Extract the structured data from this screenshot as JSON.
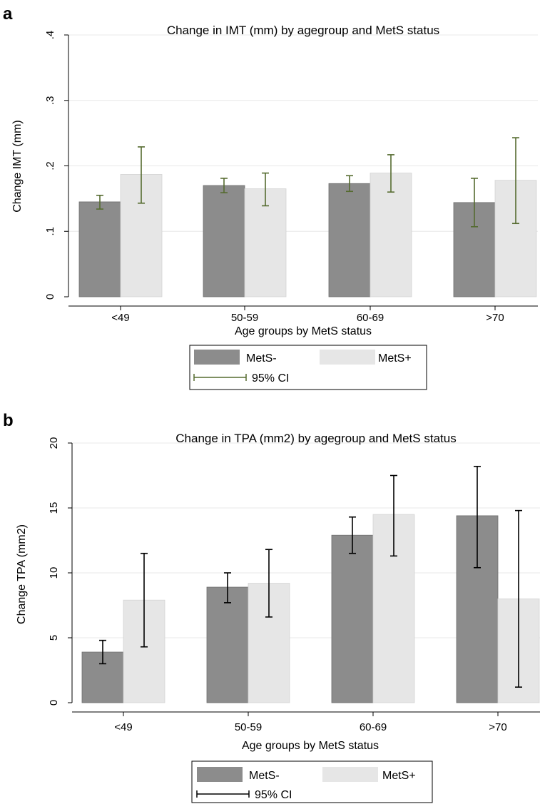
{
  "chart_data": [
    {
      "panel_label": "a",
      "type": "bar",
      "title": "Change in IMT (mm) by agegroup and MetS status",
      "xlabel": "Age groups by MetS status",
      "ylabel": "Change IMT (mm)",
      "categories": [
        "<49",
        "50-59",
        "60-69",
        ">70"
      ],
      "ylim": [
        0,
        0.4
      ],
      "yticks": [
        0,
        0.1,
        0.2,
        0.3,
        0.4
      ],
      "ytick_labels": [
        "0",
        ".1",
        ".2",
        ".3",
        ".4"
      ],
      "ytick_rotation": "vertical",
      "grid": true,
      "ci_color": "#556b2f",
      "series": [
        {
          "name": "MetS-",
          "color": "#8c8c8c",
          "values": [
            0.145,
            0.17,
            0.173,
            0.144
          ],
          "ci_low": [
            0.134,
            0.159,
            0.161,
            0.107
          ],
          "ci_high": [
            0.155,
            0.181,
            0.185,
            0.181
          ]
        },
        {
          "name": "MetS+",
          "color": "#e6e6e6",
          "values": [
            0.187,
            0.165,
            0.189,
            0.178
          ],
          "ci_low": [
            0.143,
            0.139,
            0.16,
            0.112
          ],
          "ci_high": [
            0.229,
            0.189,
            0.217,
            0.243
          ]
        }
      ],
      "legend": {
        "position": "bottom",
        "entries": [
          "MetS-",
          "MetS+",
          "95% CI"
        ]
      }
    },
    {
      "panel_label": "b",
      "type": "bar",
      "title": "Change in TPA (mm2) by agegroup and MetS status",
      "xlabel": "Age groups by MetS status",
      "ylabel": "Change TPA (mm2)",
      "categories": [
        "<49",
        "50-59",
        "60-69",
        ">70"
      ],
      "ylim": [
        0,
        20
      ],
      "yticks": [
        0,
        5,
        10,
        15,
        20
      ],
      "ytick_labels": [
        "0",
        "5",
        "10",
        "15",
        "20"
      ],
      "ytick_rotation": "vertical",
      "grid": true,
      "ci_color": "#000000",
      "series": [
        {
          "name": "MetS-",
          "color": "#8c8c8c",
          "values": [
            3.9,
            8.9,
            12.9,
            14.4
          ],
          "ci_low": [
            3.0,
            7.7,
            11.5,
            10.4
          ],
          "ci_high": [
            4.8,
            10.0,
            14.3,
            18.2
          ]
        },
        {
          "name": "MetS+",
          "color": "#e6e6e6",
          "values": [
            7.9,
            9.2,
            14.5,
            8.0
          ],
          "ci_low": [
            4.3,
            6.6,
            11.3,
            1.2
          ],
          "ci_high": [
            11.5,
            11.8,
            17.5,
            14.8
          ]
        }
      ],
      "legend": {
        "position": "bottom",
        "entries": [
          "MetS-",
          "MetS+",
          "95% CI"
        ]
      }
    }
  ]
}
